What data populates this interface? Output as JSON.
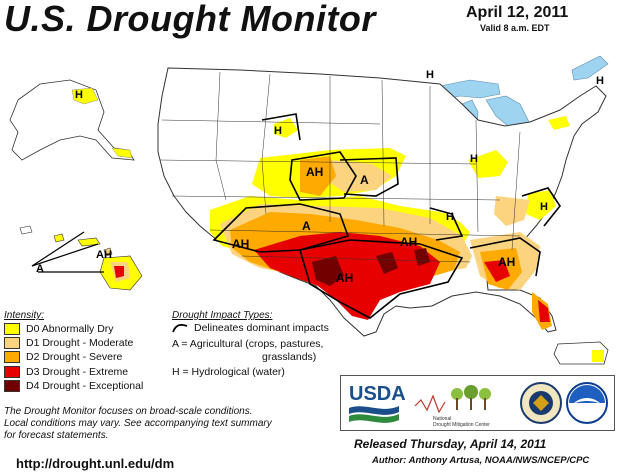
{
  "header": {
    "title": "U.S. Drought Monitor",
    "date": "April 12, 2011",
    "valid": "Valid 8 a.m. EDT"
  },
  "map": {
    "labels": {
      "ak": "H",
      "mt": "H",
      "ne_ah": "AH",
      "ks_a": "A",
      "nm_ah": "AH",
      "co_a": "A",
      "tx_ah": "AH",
      "la_ah": "AH",
      "ga_ah": "AH",
      "va_h": "H",
      "ct_h": "H",
      "wi_h": "H",
      "mi_h": "H",
      "me_h": "H",
      "hi_ah": "AH",
      "hi_a": "A"
    },
    "colors": {
      "d0": "#ffff00",
      "d1": "#fcd37f",
      "d2": "#ffaa00",
      "d3": "#e60000",
      "d4": "#730000",
      "water": "#9fd4f0",
      "land": "#ffffff",
      "border": "#333333"
    }
  },
  "legend": {
    "title": "Intensity:",
    "items": [
      {
        "label": "D0 Abnormally Dry",
        "color": "#ffff00"
      },
      {
        "label": "D1 Drought - Moderate",
        "color": "#fcd37f"
      },
      {
        "label": "D2 Drought - Severe",
        "color": "#ffaa00"
      },
      {
        "label": "D3 Drought - Extreme",
        "color": "#e60000"
      },
      {
        "label": "D4 Drought - Exceptional",
        "color": "#730000"
      }
    ]
  },
  "impacts": {
    "title": "Drought Impact Types:",
    "delineates": "Delineates dominant impacts",
    "agri_1": "A = Agricultural (crops, pastures,",
    "agri_2": "grasslands)",
    "hydro": "H = Hydrological (water)"
  },
  "note": {
    "line1": "The Drought Monitor focuses on broad-scale conditions.",
    "line2": "Local conditions may vary. See accompanying text summary",
    "line3": "for forecast statements."
  },
  "footer": {
    "url": "http://drought.unl.edu/dm",
    "released": "Released Thursday, April 14, 2011",
    "author": "Author: Anthony Artusa, NOAA/NWS/NCEP/CPC"
  },
  "logos": {
    "usda": "USDA",
    "ndmc_1": "National",
    "ndmc_2": "Drought Mitigation Center"
  }
}
